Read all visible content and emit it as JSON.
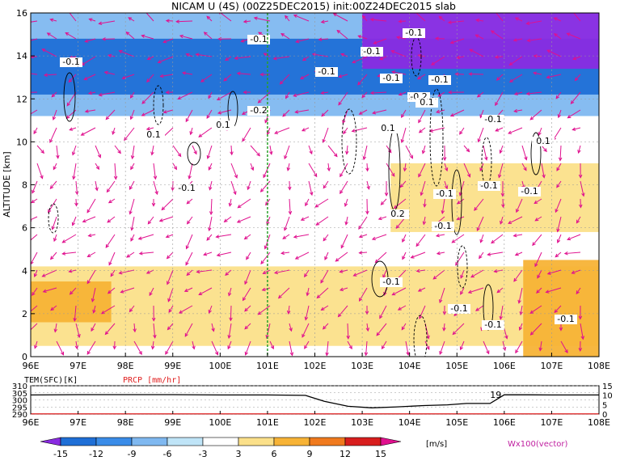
{
  "title": "NICAM U (4S) (00Z25DEC2015) init:00Z24DEC2015 slab",
  "colors": {
    "neg15": "#8a2be2",
    "neg12": "#1f6fd6",
    "neg9": "#3a8ce8",
    "neg6": "#7fb8f0",
    "neg3": "#bfe4f7",
    "zero": "#ffffff",
    "pos3": "#fbe08a",
    "pos6": "#f7b336",
    "pos9": "#f07a1e",
    "pos12": "#d81e1e",
    "pos15": "#b2002a",
    "vector": "#e0108e",
    "greenline": "#2aa02a",
    "prcp": "#e02020"
  },
  "chart_data": [
    {
      "type": "heatmap",
      "title": "NICAM U (4S) (00Z25DEC2015) init:00Z24DEC2015 slab",
      "xlabel": "",
      "ylabel": "ALTITUDE [km]",
      "xlim": [
        96,
        108
      ],
      "ylim": [
        0,
        16
      ],
      "x_ticks": [
        "96E",
        "97E",
        "98E",
        "99E",
        "100E",
        "101E",
        "102E",
        "103E",
        "104E",
        "105E",
        "106E",
        "107E",
        "108E"
      ],
      "y_ticks": [
        "0",
        "2",
        "4",
        "6",
        "8",
        "10",
        "12",
        "14",
        "16"
      ],
      "contour_labels": [
        "-0.1",
        "-0.1",
        "-0.1",
        "0.1",
        "-0.2",
        "0.1",
        "-0.1",
        "-0.1",
        "-0.1",
        "0.1",
        "-0.2",
        "-0.1",
        "-0.1",
        "0.1",
        "-0.1",
        "-0.1",
        "-0.1",
        "0.2",
        "-0.1",
        "-0.1",
        "-0.1",
        "-0.1",
        "-0.1",
        "-0.1",
        "0.1"
      ],
      "marker_lon": 101,
      "colorbar": {
        "levels": [
          "-15",
          "-12",
          "-9",
          "-6",
          "-3",
          "3",
          "6",
          "9",
          "12",
          "15"
        ],
        "unit": "[m/s]",
        "vector_label": "Wx100(vector)"
      },
      "bands": [
        {
          "lon": [
            96,
            108
          ],
          "alt": [
            11.2,
            16
          ],
          "value": -6
        },
        {
          "lon": [
            96,
            108
          ],
          "alt": [
            12.2,
            14.8
          ],
          "value": -12
        },
        {
          "lon": [
            103,
            108
          ],
          "alt": [
            13.4,
            16
          ],
          "value": -15
        },
        {
          "lon": [
            96,
            108
          ],
          "alt": [
            0.5,
            4.2
          ],
          "value": 3
        },
        {
          "lon": [
            96,
            97.7
          ],
          "alt": [
            1.6,
            3.5
          ],
          "value": 6
        },
        {
          "lon": [
            103.6,
            108
          ],
          "alt": [
            5.8,
            9.0
          ],
          "value": 3
        },
        {
          "lon": [
            106.4,
            108
          ],
          "alt": [
            0,
            4.5
          ],
          "value": 6
        }
      ]
    },
    {
      "type": "line",
      "title": "",
      "labels": [
        "TEM(SFC)[K]",
        "PRCP [mm/hr]"
      ],
      "left_ticks": [
        "290",
        "295",
        "300",
        "305",
        "310"
      ],
      "right_ticks": [
        "0",
        "5",
        "10",
        "15"
      ],
      "ylim_left": [
        290,
        310
      ],
      "ylim_right": [
        0,
        15
      ],
      "x": [
        96,
        97,
        98,
        99,
        100,
        101,
        101.8,
        102.2,
        102.7,
        103.2,
        103.7,
        104.3,
        104.8,
        105.2,
        105.7,
        106,
        106.5,
        107,
        108
      ],
      "series": [
        {
          "name": "TEM(SFC)[K]",
          "values": [
            303.5,
            303.7,
            303.7,
            303.7,
            303.5,
            303.5,
            303.2,
            299,
            295.5,
            294.4,
            295,
            296,
            296.5,
            297.5,
            297.5,
            303.6,
            303.6,
            303.5,
            303.5
          ]
        },
        {
          "name": "PRCP [mm/hr]",
          "values": [
            0.1,
            0.1,
            0.1,
            0.1,
            0.1,
            0.1,
            0.1,
            0.1,
            0.1,
            0.1,
            0.1,
            0.1,
            0.1,
            0.1,
            0.1,
            0.1,
            0.1,
            0.1,
            0.1
          ]
        }
      ],
      "annotation": "19"
    }
  ]
}
